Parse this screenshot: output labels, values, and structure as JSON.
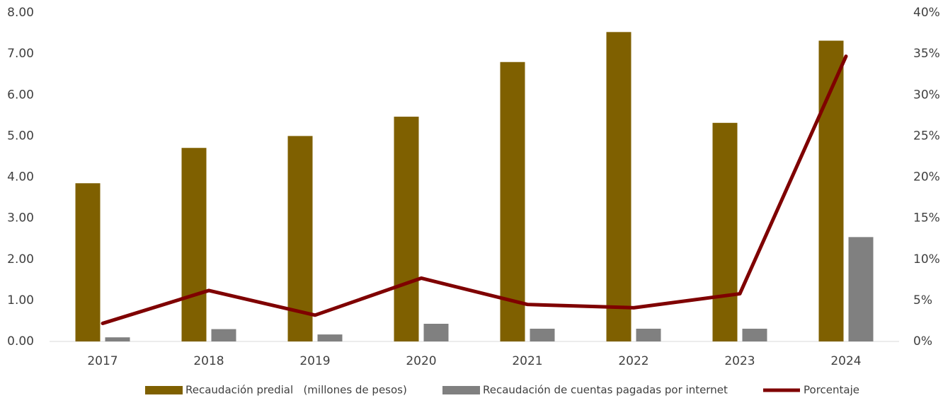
{
  "chart_data": {
    "type": "bar_line",
    "categories": [
      "2017",
      "2018",
      "2019",
      "2020",
      "2021",
      "2022",
      "2023",
      "2024"
    ],
    "series": [
      {
        "name": "Recaudación predial   (millones de pesos)",
        "color": "#7f6000",
        "type": "bar",
        "values": [
          3.85,
          4.71,
          5.0,
          5.47,
          6.8,
          7.53,
          5.32,
          7.32
        ]
      },
      {
        "name": "Recaudación de cuentas pagadas por internet",
        "color": "#808080",
        "type": "bar",
        "values": [
          0.1,
          0.3,
          0.17,
          0.43,
          0.31,
          0.31,
          0.31,
          2.54
        ]
      },
      {
        "name": "Porcentaje",
        "color": "#7f0000",
        "type": "line",
        "axis": "y2",
        "values": [
          2.2,
          6.2,
          3.2,
          7.7,
          4.5,
          4.1,
          5.8,
          34.7
        ]
      }
    ],
    "ylim": [
      0,
      8
    ],
    "yticks": [
      {
        "value": 0,
        "label": "0.00"
      },
      {
        "value": 1,
        "label": "1.00"
      },
      {
        "value": 2,
        "label": "2.00"
      },
      {
        "value": 3,
        "label": "3.00"
      },
      {
        "value": 4,
        "label": "4.00"
      },
      {
        "value": 5,
        "label": "5.00"
      },
      {
        "value": 6,
        "label": "6.00"
      },
      {
        "value": 7,
        "label": "7.00"
      },
      {
        "value": 8,
        "label": "8.00"
      }
    ],
    "y2lim": [
      0,
      40
    ],
    "y2ticks": [
      {
        "value": 0,
        "label": "0%"
      },
      {
        "value": 5,
        "label": "5%"
      },
      {
        "value": 10,
        "label": "10%"
      },
      {
        "value": 15,
        "label": "15%"
      },
      {
        "value": 20,
        "label": "20%"
      },
      {
        "value": 25,
        "label": "25%"
      },
      {
        "value": 30,
        "label": "30%"
      },
      {
        "value": 35,
        "label": "35%"
      },
      {
        "value": 40,
        "label": "40%"
      }
    ],
    "legend": "bottom"
  }
}
